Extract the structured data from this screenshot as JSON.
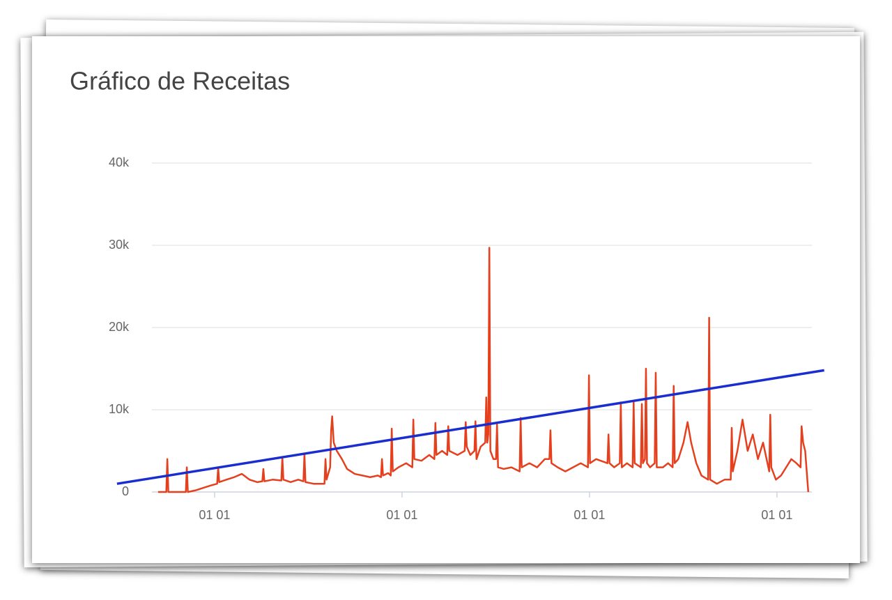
{
  "chart_data": {
    "type": "line",
    "title": "Gráfico de Receitas",
    "xlim": [
      0,
      1285
    ],
    "xticks": [
      {
        "value": 122,
        "label": "01 01"
      },
      {
        "value": 487,
        "label": "01 01"
      },
      {
        "value": 852,
        "label": "01 01"
      },
      {
        "value": 1217,
        "label": "01 01"
      }
    ],
    "ylim": [
      0,
      40000
    ],
    "yticks": [
      0,
      {
        "value": 10000,
        "label": "10k"
      },
      {
        "value": 20000,
        "label": "20k"
      },
      {
        "value": 30000,
        "label": "30k"
      },
      {
        "value": 40000,
        "label": "40k"
      }
    ],
    "grid": true,
    "series": [
      {
        "color": "#e5401e",
        "x": [
          12,
          28,
          30,
          32,
          66,
          68,
          70,
          85,
          100,
          115,
          127,
          129,
          131,
          145,
          160,
          175,
          190,
          205,
          215,
          217,
          219,
          235,
          252,
          254,
          256,
          270,
          285,
          295,
          297,
          299,
          315,
          336,
          338,
          340,
          347,
          349,
          351,
          354,
          360,
          370,
          380,
          395,
          410,
          425,
          440,
          446,
          448,
          450,
          460,
          465,
          467,
          469,
          480,
          495,
          507,
          509,
          511,
          525,
          540,
          550,
          552,
          554,
          565,
          575,
          577,
          579,
          595,
          609,
          611,
          613,
          620,
          628,
          630,
          632,
          640,
          649,
          651,
          653,
          655,
          657,
          659,
          665,
          670,
          672,
          674,
          685,
          700,
          716,
          718,
          720,
          735,
          750,
          765,
          774,
          776,
          778,
          790,
          805,
          820,
          835,
          849,
          851,
          853,
          865,
          887,
          889,
          891,
          900,
          911,
          913,
          915,
          925,
          936,
          938,
          940,
          952,
          954,
          956,
          960,
          962,
          964,
          970,
          979,
          981,
          983,
          995,
          1005,
          1014,
          1016,
          1018,
          1025,
          1035,
          1043,
          1050,
          1060,
          1070,
          1083,
          1085,
          1087,
          1100,
          1115,
          1127,
          1129,
          1131,
          1140,
          1150,
          1160,
          1170,
          1180,
          1190,
          1202,
          1204,
          1206,
          1215,
          1225,
          1235,
          1245,
          1255,
          1263,
          1265,
          1268,
          1272,
          1278
        ],
        "values": [
          0,
          0,
          4000,
          0,
          0,
          3000,
          0,
          200,
          500,
          800,
          1000,
          3000,
          1200,
          1500,
          1800,
          2200,
          1500,
          1200,
          1300,
          2800,
          1300,
          1500,
          1400,
          4200,
          1500,
          1200,
          1500,
          1300,
          4600,
          1200,
          1000,
          1000,
          4000,
          1500,
          3000,
          7500,
          9200,
          6000,
          5000,
          4000,
          2800,
          2200,
          2000,
          1800,
          2000,
          1800,
          4000,
          2000,
          2300,
          2000,
          7700,
          2500,
          3000,
          3500,
          3000,
          8800,
          4000,
          3800,
          4500,
          4000,
          8400,
          4500,
          5000,
          4500,
          8000,
          5000,
          4500,
          5000,
          8500,
          5500,
          4500,
          5000,
          8600,
          4000,
          5500,
          6000,
          11500,
          6000,
          7000,
          29700,
          5000,
          4000,
          4000,
          8200,
          3000,
          2800,
          3000,
          2500,
          9000,
          3000,
          3500,
          3000,
          4000,
          4000,
          7500,
          3500,
          3000,
          2500,
          3000,
          3500,
          3000,
          14200,
          3500,
          4000,
          3500,
          7000,
          3500,
          3000,
          3500,
          10900,
          3000,
          3500,
          3000,
          10900,
          3500,
          3000,
          10700,
          3500,
          4000,
          15000,
          3500,
          3000,
          3500,
          14500,
          3000,
          3000,
          3500,
          3000,
          12900,
          3500,
          4000,
          6000,
          8500,
          6000,
          3500,
          2000,
          1500,
          21200,
          1500,
          1000,
          1500,
          1500,
          7800,
          2500,
          5000,
          8800,
          5000,
          7000,
          4000,
          6000,
          2500,
          9400,
          3000,
          1500,
          2000,
          3000,
          4000,
          3500,
          3000,
          8000,
          6000,
          5000,
          0
        ]
      },
      {
        "color": "#1a2ed0",
        "x": [
          -68,
          1309
        ],
        "values": [
          1000,
          14800
        ]
      }
    ]
  }
}
